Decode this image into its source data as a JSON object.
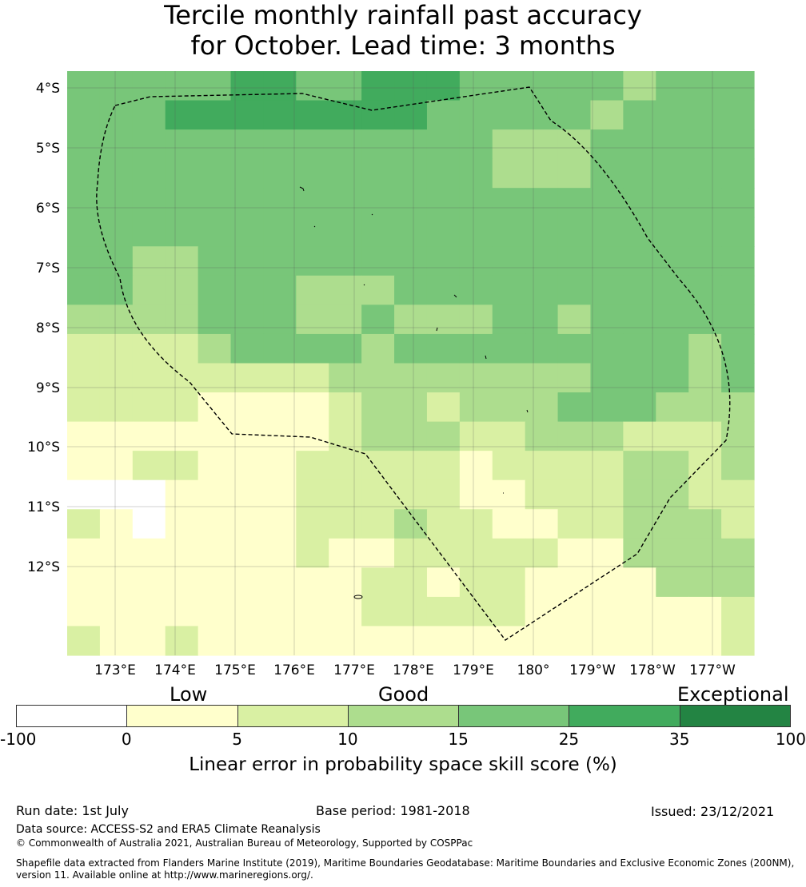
{
  "title": {
    "line1": "Tercile monthly rainfall past accuracy",
    "line2": "for October. Lead time: 3 months"
  },
  "map": {
    "lon_labels": [
      "173°E",
      "174°E",
      "175°E",
      "176°E",
      "177°E",
      "178°E",
      "179°E",
      "180°",
      "179°W",
      "178°W",
      "177°W"
    ],
    "lat_labels": [
      "4°S",
      "5°S",
      "6°S",
      "7°S",
      "8°S",
      "9°S",
      "10°S",
      "11°S",
      "12°S"
    ],
    "grid": [
      [
        3,
        3,
        3,
        3,
        3,
        4,
        4,
        3,
        3,
        4,
        4,
        4,
        3,
        3,
        3,
        3,
        3,
        2,
        3,
        3,
        3
      ],
      [
        3,
        3,
        3,
        4,
        4,
        4,
        4,
        4,
        4,
        4,
        4,
        3,
        3,
        3,
        3,
        3,
        2,
        3,
        3,
        3,
        3
      ],
      [
        3,
        3,
        3,
        3,
        3,
        3,
        3,
        3,
        3,
        3,
        3,
        3,
        3,
        2,
        2,
        2,
        3,
        3,
        3,
        3,
        3
      ],
      [
        3,
        3,
        3,
        3,
        3,
        3,
        3,
        3,
        3,
        3,
        3,
        3,
        3,
        2,
        2,
        2,
        3,
        3,
        3,
        3,
        3
      ],
      [
        3,
        3,
        3,
        3,
        3,
        3,
        3,
        3,
        3,
        3,
        3,
        3,
        3,
        3,
        3,
        3,
        3,
        3,
        3,
        3,
        3
      ],
      [
        3,
        3,
        3,
        3,
        3,
        3,
        3,
        3,
        3,
        3,
        3,
        3,
        3,
        3,
        3,
        3,
        3,
        3,
        3,
        3,
        3
      ],
      [
        3,
        3,
        2,
        2,
        3,
        3,
        3,
        3,
        3,
        3,
        3,
        3,
        3,
        3,
        3,
        3,
        3,
        3,
        3,
        3,
        3
      ],
      [
        3,
        3,
        2,
        2,
        3,
        3,
        3,
        2,
        2,
        2,
        3,
        3,
        3,
        3,
        3,
        3,
        3,
        3,
        3,
        3,
        3
      ],
      [
        2,
        2,
        2,
        2,
        3,
        3,
        3,
        2,
        2,
        3,
        2,
        2,
        2,
        3,
        3,
        2,
        3,
        3,
        3,
        3,
        3
      ],
      [
        1,
        1,
        1,
        1,
        2,
        3,
        3,
        3,
        3,
        2,
        3,
        3,
        3,
        3,
        3,
        3,
        3,
        3,
        3,
        2,
        3
      ],
      [
        1,
        1,
        1,
        1,
        1,
        1,
        1,
        1,
        2,
        2,
        2,
        2,
        2,
        2,
        2,
        2,
        3,
        3,
        3,
        2,
        3
      ],
      [
        1,
        1,
        1,
        1,
        0,
        0,
        0,
        0,
        1,
        2,
        2,
        1,
        2,
        2,
        2,
        3,
        3,
        3,
        2,
        2,
        2
      ],
      [
        0,
        0,
        0,
        0,
        0,
        0,
        0,
        0,
        1,
        2,
        2,
        2,
        1,
        1,
        2,
        2,
        2,
        1,
        1,
        1,
        2
      ],
      [
        0,
        0,
        1,
        1,
        0,
        0,
        0,
        1,
        1,
        1,
        1,
        1,
        0,
        1,
        1,
        1,
        1,
        2,
        2,
        1,
        2
      ],
      [
        -1,
        -1,
        -1,
        0,
        0,
        0,
        0,
        1,
        1,
        1,
        1,
        1,
        0,
        0,
        1,
        1,
        1,
        2,
        2,
        1,
        1
      ],
      [
        1,
        0,
        -1,
        0,
        0,
        0,
        0,
        1,
        1,
        1,
        2,
        1,
        1,
        0,
        0,
        1,
        1,
        2,
        2,
        2,
        1
      ],
      [
        0,
        0,
        0,
        0,
        0,
        0,
        0,
        1,
        0,
        0,
        1,
        1,
        1,
        1,
        1,
        0,
        0,
        2,
        2,
        2,
        2
      ],
      [
        0,
        0,
        0,
        0,
        0,
        0,
        0,
        0,
        0,
        1,
        1,
        0,
        1,
        1,
        0,
        0,
        0,
        0,
        2,
        2,
        2
      ],
      [
        0,
        0,
        0,
        0,
        0,
        0,
        0,
        0,
        0,
        1,
        1,
        1,
        1,
        1,
        0,
        0,
        0,
        0,
        0,
        0,
        1
      ],
      [
        1,
        0,
        0,
        1,
        0,
        0,
        0,
        0,
        0,
        0,
        0,
        0,
        0,
        0,
        0,
        0,
        0,
        0,
        0,
        0,
        1
      ]
    ]
  },
  "colorbar": {
    "colors": [
      "#ffffff",
      "#ffffcc",
      "#d9f0a3",
      "#addd8e",
      "#78c679",
      "#41ab5d",
      "#238443"
    ],
    "ticks": [
      "-100",
      "0",
      "5",
      "10",
      "15",
      "25",
      "35",
      "100"
    ],
    "categories": [
      "Low",
      "Good",
      "Exceptional"
    ],
    "label": "Linear error in probability space skill score (%)"
  },
  "footer": {
    "run_date": "Run date: 1st July",
    "base_period": "Base period: 1981-2018",
    "issued": "Issued: 23/12/2021",
    "data_source": "Data source: ACCESS-S2 and ERA5 Climate Reanalysis",
    "copyright": "© Commonwealth of Australia 2021, Australian Bureau of Meteorology, Supported by COSPPac",
    "shapefile_line1": "Shapefile data extracted from Flanders Marine Institute (2019), Maritime Boundaries Geodatabase: Maritime Boundaries and Exclusive Economic Zones (200NM),",
    "shapefile_line2": "version 11. Available online at http://www.marineregions.org/."
  }
}
